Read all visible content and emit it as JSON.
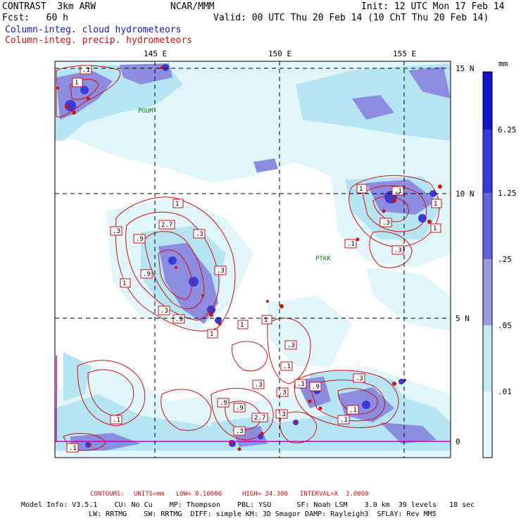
{
  "header": {
    "model": "CONTRAST  3km ARW",
    "fcst": "Fcst:   60 h",
    "org": "NCAR/MMM",
    "init": "Init: 12 UTC Mon 17 Feb 14",
    "valid": "Valid: 00 UTC Thu 20 Feb 14 (10 ChT Thu 20 Feb 14)",
    "field_blue": "Column-integ. cloud hydrometeors",
    "field_red": "Column-integ. precip. hydrometeors"
  },
  "map": {
    "lon_labels": [
      "145 E",
      "150 E",
      "155 E"
    ],
    "lat_labels": [
      "15 N",
      "10 N",
      "5 N",
      "0"
    ],
    "stations": [
      "PGUM",
      "PTKK"
    ],
    "contour_labels": [
      "1",
      "1",
      "1",
      "1",
      ".3",
      "2.7",
      ".9",
      ".3",
      ".9",
      "1",
      ".3",
      ".3",
      ".9",
      "1",
      "1",
      ".1",
      "1",
      ".3",
      ".1",
      "1",
      ".3",
      ".1",
      ".1",
      ".9",
      ".3",
      ".1",
      ".9",
      "2.7",
      ".3",
      ".3",
      ".3",
      ".9",
      ".3",
      ".1",
      ".1",
      ".1",
      ".3",
      ".1"
    ],
    "colors": {
      "shade_lightest": "#e0f6fb",
      "shade_light": "#b5e4f2",
      "shade_mid": "#8c8ce0",
      "shade_dark": "#5050d8",
      "shade_darkest": "#1414c8",
      "contour": "#d01010",
      "boundary": "#c800c8"
    }
  },
  "colorbar": {
    "unit": "mm",
    "labels": [
      "6.25",
      "1.25",
      ".25",
      ".05",
      ".01"
    ],
    "colors": [
      "#1414c8",
      "#3a3ad8",
      "#6464dc",
      "#9999e6",
      "#c4e8f4",
      "#e6f8fb",
      "#ffffff"
    ]
  },
  "footer": {
    "contours_title": "CONTOURS:",
    "units": "UNITS=mm",
    "low": "LOW= 0.10000",
    "high": "HIGH= 24.300",
    "interval": "INTERVAL=X  3.0000",
    "info1": "Model Info: V3.5.1    CU: No Cu    MP: Thompson    PBL: YSU      SF: Noah LSM    3.0 km  39 levels   18 sec",
    "info2": "LW: RRTMG    SW: RRTMG  DIFF: simple KM: 3D Smagor DAMP: Rayleigh3  SFLAY: Rev MM5"
  }
}
